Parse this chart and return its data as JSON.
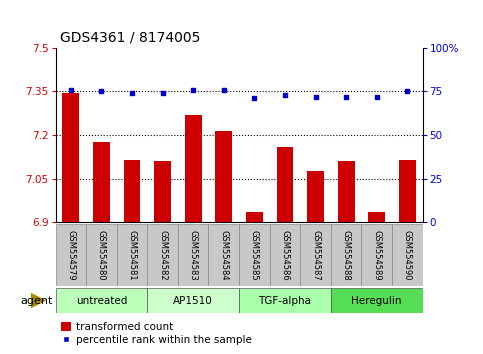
{
  "title": "GDS4361 / 8174005",
  "samples": [
    "GSM554579",
    "GSM554580",
    "GSM554581",
    "GSM554582",
    "GSM554583",
    "GSM554584",
    "GSM554585",
    "GSM554586",
    "GSM554587",
    "GSM554588",
    "GSM554589",
    "GSM554590"
  ],
  "bar_values": [
    7.345,
    7.175,
    7.115,
    7.11,
    7.27,
    7.215,
    6.935,
    7.16,
    7.075,
    7.11,
    6.935,
    7.115
  ],
  "percentile_values": [
    76,
    75,
    74,
    74,
    76,
    76,
    71,
    73,
    72,
    72,
    72,
    75
  ],
  "ylim_left": [
    6.9,
    7.5
  ],
  "ylim_right": [
    0,
    100
  ],
  "yticks_left": [
    6.9,
    7.05,
    7.2,
    7.35,
    7.5
  ],
  "yticks_right": [
    0,
    25,
    50,
    75,
    100
  ],
  "ytick_labels_left": [
    "6.9",
    "7.05",
    "7.2",
    "7.35",
    "7.5"
  ],
  "ytick_labels_right": [
    "0",
    "25",
    "50",
    "75",
    "100%"
  ],
  "hlines": [
    7.05,
    7.2,
    7.35
  ],
  "bar_color": "#cc0000",
  "dot_color": "#0000cc",
  "bar_bottom": 6.9,
  "agents": [
    {
      "label": "untreated",
      "start": 0,
      "end": 3,
      "color": "#bbffbb"
    },
    {
      "label": "AP1510",
      "start": 3,
      "end": 6,
      "color": "#ccffcc"
    },
    {
      "label": "TGF-alpha",
      "start": 6,
      "end": 9,
      "color": "#aaffaa"
    },
    {
      "label": "Heregulin",
      "start": 9,
      "end": 12,
      "color": "#55dd55"
    }
  ],
  "legend_bar_label": "transformed count",
  "legend_dot_label": "percentile rank within the sample",
  "agent_label": "agent",
  "title_fontsize": 10,
  "tick_fontsize": 7.5,
  "bar_width": 0.55
}
